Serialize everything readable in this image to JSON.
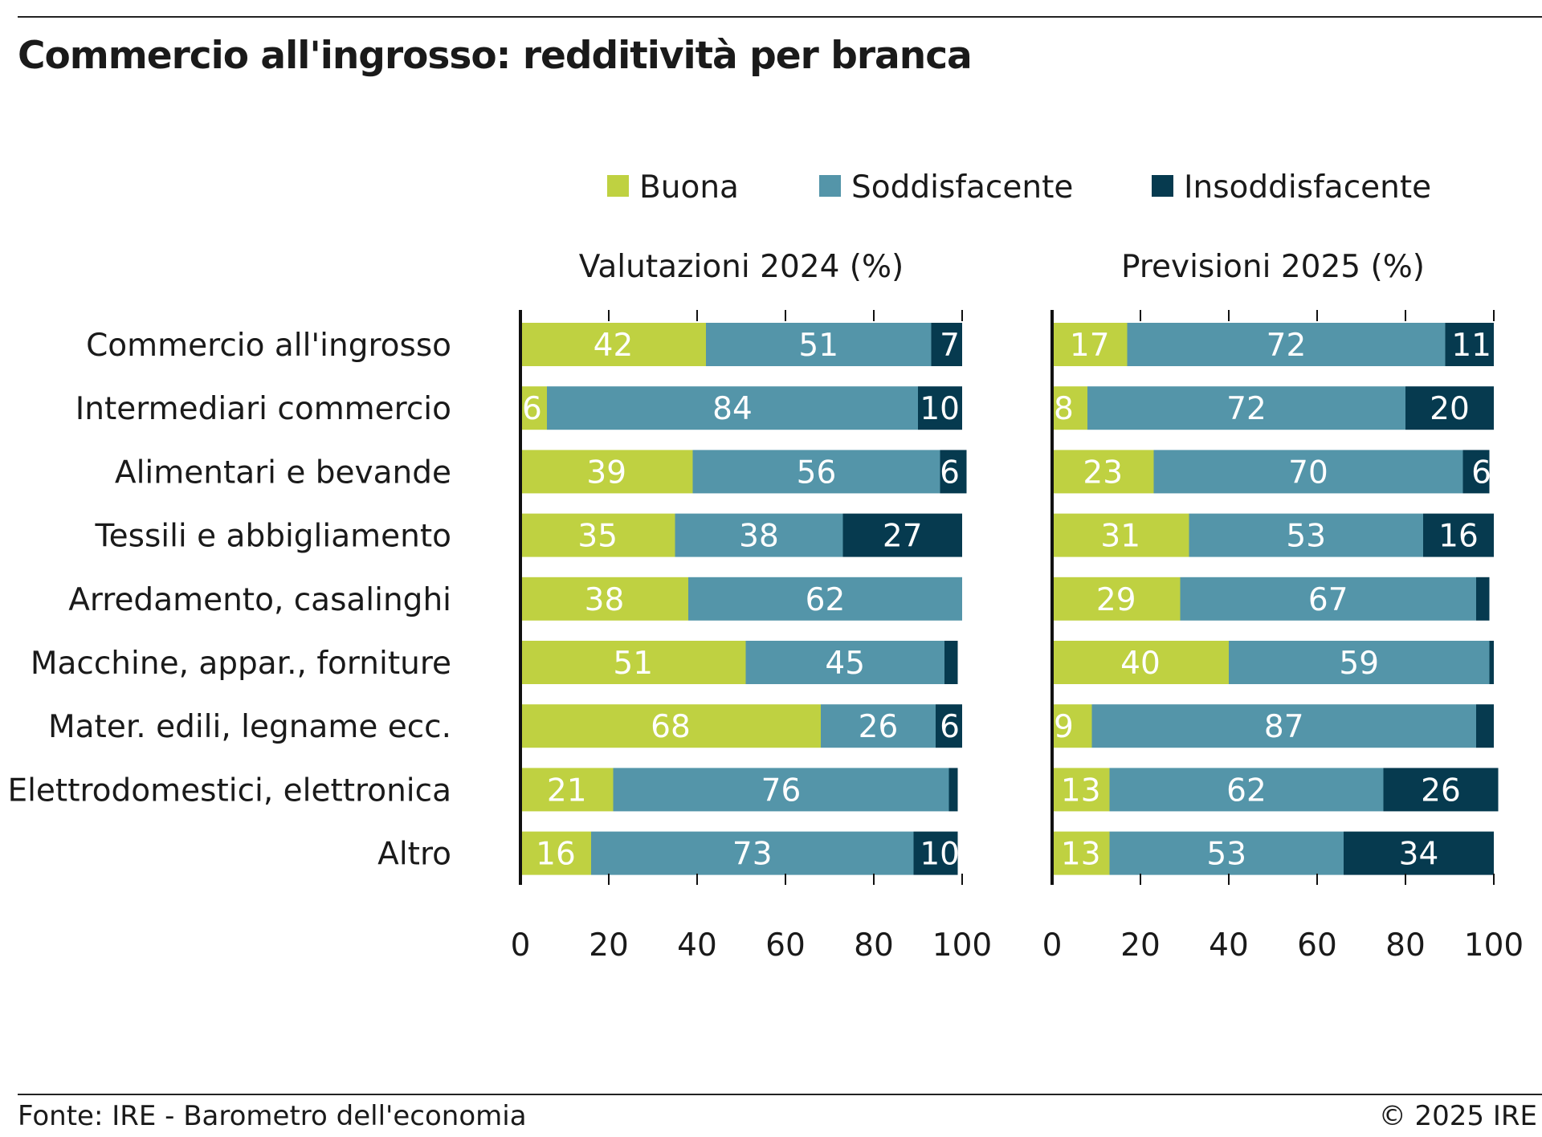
{
  "title": "Commercio all'ingrosso: redditività per branca",
  "footer": {
    "source": "Fonte: IRE - Barometro dell'economia",
    "copyright": "© 2025 IRE"
  },
  "colors": {
    "Buona": "#bfd141",
    "Soddisfacente": "#5495a9",
    "Insoddisfacente": "#063a4f"
  },
  "chart_data": [
    {
      "type": "bar",
      "orientation": "horizontal",
      "stacked": true,
      "title": "Valutazioni 2024 (%)",
      "categories": [
        "Commercio all'ingrosso",
        "Intermediari commercio",
        "Alimentari e bevande",
        "Tessili e abbigliamento",
        "Arredamento, casalinghi",
        "Macchine, appar., forniture",
        "Mater. edili, legname ecc.",
        "Elettrodomestici, elettronica",
        "Altro"
      ],
      "series": [
        {
          "name": "Buona",
          "values": [
            42,
            6,
            39,
            35,
            38,
            51,
            68,
            21,
            16
          ]
        },
        {
          "name": "Soddisfacente",
          "values": [
            51,
            84,
            56,
            38,
            62,
            45,
            26,
            76,
            73
          ]
        },
        {
          "name": "Insoddisfacente",
          "values": [
            7,
            10,
            6,
            27,
            0,
            3,
            6,
            2,
            10
          ]
        }
      ],
      "xlim": [
        0,
        100
      ],
      "xticks": [
        "0",
        "20",
        "40",
        "60",
        "80",
        "100"
      ],
      "legend": "top",
      "grid": false
    },
    {
      "type": "bar",
      "orientation": "horizontal",
      "stacked": true,
      "title": "Previsioni 2025 (%)",
      "categories": [
        "Commercio all'ingrosso",
        "Intermediari commercio",
        "Alimentari e bevande",
        "Tessili e abbigliamento",
        "Arredamento, casalinghi",
        "Macchine, appar., forniture",
        "Mater. edili, legname ecc.",
        "Elettrodomestici, elettronica",
        "Altro"
      ],
      "series": [
        {
          "name": "Buona",
          "values": [
            17,
            8,
            23,
            31,
            29,
            40,
            9,
            13,
            13
          ]
        },
        {
          "name": "Soddisfacente",
          "values": [
            72,
            72,
            70,
            53,
            67,
            59,
            87,
            62,
            53
          ]
        },
        {
          "name": "Insoddisfacente",
          "values": [
            11,
            20,
            6,
            16,
            3,
            1,
            4,
            26,
            34
          ]
        }
      ],
      "xlim": [
        0,
        100
      ],
      "xticks": [
        "0",
        "20",
        "40",
        "60",
        "80",
        "100"
      ],
      "legend": "top",
      "grid": false
    }
  ]
}
